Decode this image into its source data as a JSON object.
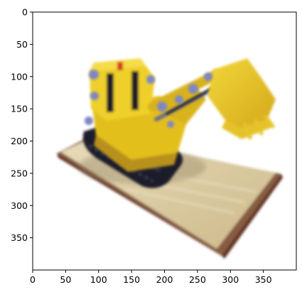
{
  "chart_data": {
    "type": "image",
    "title": "",
    "xlabel": "",
    "ylabel": "",
    "xlim": [
      0,
      400
    ],
    "ylim": [
      400,
      0
    ],
    "xticks": [
      0,
      50,
      100,
      150,
      200,
      250,
      300,
      350
    ],
    "yticks": [
      0,
      50,
      100,
      150,
      200,
      250,
      300,
      350
    ],
    "grid": false,
    "content": "blurry rendering of a yellow toy bulldozer on a wooden base"
  },
  "colors": {
    "bulldozer_yellow": "#e8c51e",
    "shadow_yellow": "#b8901a",
    "track_dark": "#1e1f2a",
    "accent_blue": "#7e87c4",
    "accent_red": "#d23a23",
    "base_top": "#d9c89c",
    "base_edge": "#6a3a24"
  }
}
